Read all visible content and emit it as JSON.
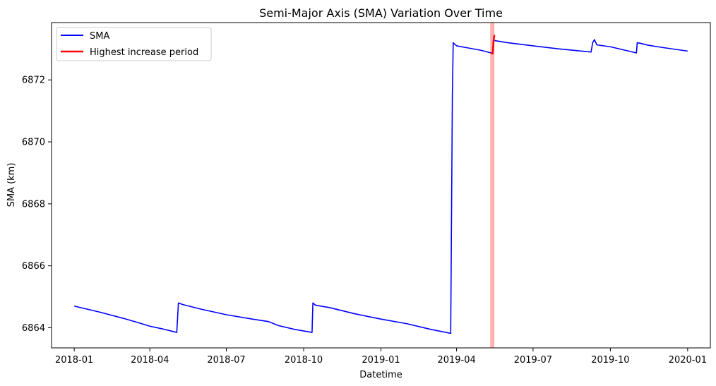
{
  "chart_data": {
    "type": "line",
    "title": "Semi-Major Axis (SMA) Variation Over Time",
    "xlabel": "Datetime",
    "ylabel": "SMA (km)",
    "xlim": [
      "2017-12-05",
      "2020-01-28"
    ],
    "ylim": [
      6863.35,
      6873.85
    ],
    "x_ticks": [
      "2018-01",
      "2018-04",
      "2018-07",
      "2018-10",
      "2019-01",
      "2019-04",
      "2019-07",
      "2019-10",
      "2020-01"
    ],
    "y_ticks": [
      6864,
      6866,
      6868,
      6870,
      6872
    ],
    "grid": false,
    "legend_position": "upper-left",
    "series": [
      {
        "name": "SMA",
        "color": "#0000ff",
        "x": [
          "2018-01-01",
          "2018-02-01",
          "2018-03-01",
          "2018-03-20",
          "2018-04-01",
          "2018-04-15",
          "2018-05-03",
          "2018-05-05",
          "2018-05-10",
          "2018-06-01",
          "2018-07-01",
          "2018-08-01",
          "2018-08-20",
          "2018-09-01",
          "2018-09-20",
          "2018-10-11",
          "2018-10-12",
          "2018-10-15",
          "2018-11-01",
          "2018-12-01",
          "2019-01-01",
          "2019-02-01",
          "2019-03-01",
          "2019-03-25",
          "2019-03-27",
          "2019-03-28",
          "2019-04-01",
          "2019-04-15",
          "2019-05-01",
          "2019-05-12"
        ],
        "y": [
          6864.7,
          6864.5,
          6864.3,
          6864.15,
          6864.05,
          6863.97,
          6863.85,
          6864.8,
          6864.75,
          6864.6,
          6864.42,
          6864.28,
          6864.2,
          6864.07,
          6863.95,
          6863.85,
          6864.8,
          6864.73,
          6864.65,
          6864.45,
          6864.28,
          6864.13,
          6863.95,
          6863.82,
          6871.5,
          6873.2,
          6873.1,
          6873.03,
          6872.95,
          6872.87
        ]
      },
      {
        "name": "SMA",
        "color": "#0000ff",
        "x": [
          "2019-05-16",
          "2019-06-01",
          "2019-07-01",
          "2019-08-01",
          "2019-09-08",
          "2019-09-10",
          "2019-09-12",
          "2019-09-15",
          "2019-10-01",
          "2019-11-01",
          "2019-11-02",
          "2019-11-06",
          "2019-11-15",
          "2019-12-01",
          "2020-01-01"
        ],
        "y": [
          6873.27,
          6873.2,
          6873.1,
          6873.0,
          6872.9,
          6873.2,
          6873.3,
          6873.13,
          6873.07,
          6872.87,
          6873.2,
          6873.18,
          6873.12,
          6873.05,
          6872.93
        ]
      },
      {
        "name": "Highest increase period",
        "color": "#ff0000",
        "x": [
          "2019-05-12",
          "2019-05-14",
          "2019-05-15",
          "2019-05-16"
        ],
        "y": [
          6872.87,
          6872.85,
          6873.25,
          6873.45
        ]
      }
    ],
    "highlight_span": {
      "start": "2019-05-11",
      "end": "2019-05-16",
      "color": "#ff0000",
      "opacity": 0.3
    },
    "legend": [
      {
        "label": "SMA",
        "color": "#0000ff"
      },
      {
        "label": "Highest increase period",
        "color": "#ff0000"
      }
    ]
  }
}
